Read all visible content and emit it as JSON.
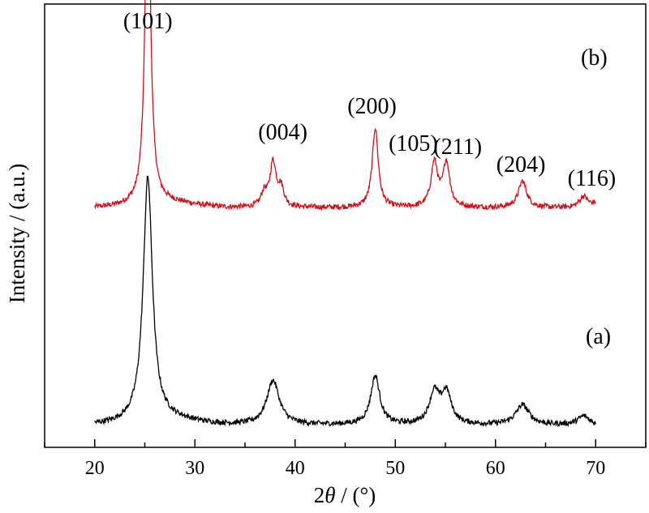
{
  "chart_data": {
    "type": "line",
    "xlabel_prefix": "2",
    "xlabel_symbol": "θ",
    "xlabel_suffix": " / (°)",
    "ylabel": "Intensity / (a.u.)",
    "xlim": [
      15,
      75
    ],
    "xticks": [
      "20",
      "30",
      "40",
      "50",
      "60",
      "70"
    ],
    "grid": false,
    "legend": "none",
    "series": [
      {
        "name": "(b)",
        "color": "#d0121b",
        "baseline": 0.54,
        "noise": 0.006,
        "peaks": [
          {
            "x": 25.3,
            "h": 0.78,
            "w": 0.32
          },
          {
            "x": 36.9,
            "h": 0.03,
            "w": 0.35
          },
          {
            "x": 37.8,
            "h": 0.1,
            "w": 0.38
          },
          {
            "x": 38.6,
            "h": 0.04,
            "w": 0.35
          },
          {
            "x": 48.0,
            "h": 0.18,
            "w": 0.36
          },
          {
            "x": 53.9,
            "h": 0.1,
            "w": 0.4
          },
          {
            "x": 55.1,
            "h": 0.1,
            "w": 0.4
          },
          {
            "x": 62.7,
            "h": 0.06,
            "w": 0.5
          },
          {
            "x": 68.8,
            "h": 0.025,
            "w": 0.5
          },
          {
            "x": 70.3,
            "h": 0.015,
            "w": 0.5
          }
        ]
      },
      {
        "name": "(a)",
        "color": "#000000",
        "baseline": 0.05,
        "noise": 0.006,
        "peaks": [
          {
            "x": 25.3,
            "h": 0.55,
            "w": 0.55
          },
          {
            "x": 37.8,
            "h": 0.1,
            "w": 0.75
          },
          {
            "x": 48.0,
            "h": 0.11,
            "w": 0.55
          },
          {
            "x": 53.9,
            "h": 0.07,
            "w": 0.6
          },
          {
            "x": 55.1,
            "h": 0.07,
            "w": 0.6
          },
          {
            "x": 62.7,
            "h": 0.045,
            "w": 0.8
          },
          {
            "x": 68.8,
            "h": 0.02,
            "w": 0.7
          }
        ]
      }
    ],
    "annotations": [
      {
        "text": "(101)",
        "x": 25.3
      },
      {
        "text": "(004)",
        "x": 37.8
      },
      {
        "text": "(200)",
        "x": 48.0
      },
      {
        "text": "(105)",
        "x": 53.9
      },
      {
        "text": "(211)",
        "x": 55.1
      },
      {
        "text": "(204)",
        "x": 62.7
      },
      {
        "text": "(116)",
        "x": 68.8
      }
    ]
  }
}
